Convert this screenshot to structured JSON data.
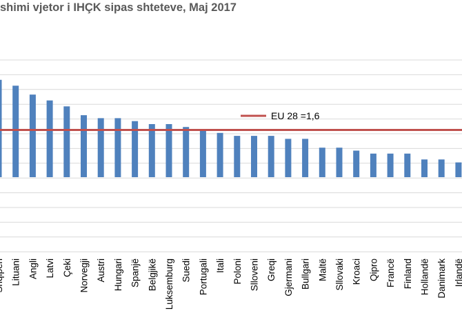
{
  "chart_data": {
    "type": "bar",
    "title": "shimi vjetor i IHÇK sipas shteteve, Maj 2017",
    "categories": [
      "Shqipëri",
      "Lituani",
      "Angli",
      "Latvi",
      "Çeki",
      "Norvegji",
      "Austri",
      "Hungari",
      "Spanjë",
      "Belgjikë",
      "Luksemburg",
      "Suedi",
      "Portugali",
      "Itali",
      "Poloni",
      "Slloveni",
      "Greqi",
      "Gjermani",
      "Bullgari",
      "Maltë",
      "Sllovaki",
      "Kroaci",
      "Qipro",
      "Francë",
      "Finland",
      "Hollandë",
      "Danimark",
      "Irlandë"
    ],
    "values": [
      3.3,
      3.1,
      2.8,
      2.6,
      2.4,
      2.1,
      2.0,
      2.0,
      1.9,
      1.8,
      1.8,
      1.7,
      1.6,
      1.5,
      1.4,
      1.4,
      1.4,
      1.3,
      1.3,
      1.0,
      1.0,
      0.9,
      0.8,
      0.8,
      0.8,
      0.6,
      0.6,
      0.5
    ],
    "reference_line": {
      "label": "EU 28 =1,6",
      "value": 1.6,
      "color": "#C0504D"
    },
    "bar_color": "#4F81BD",
    "grid": true,
    "legend": "inside-right"
  }
}
